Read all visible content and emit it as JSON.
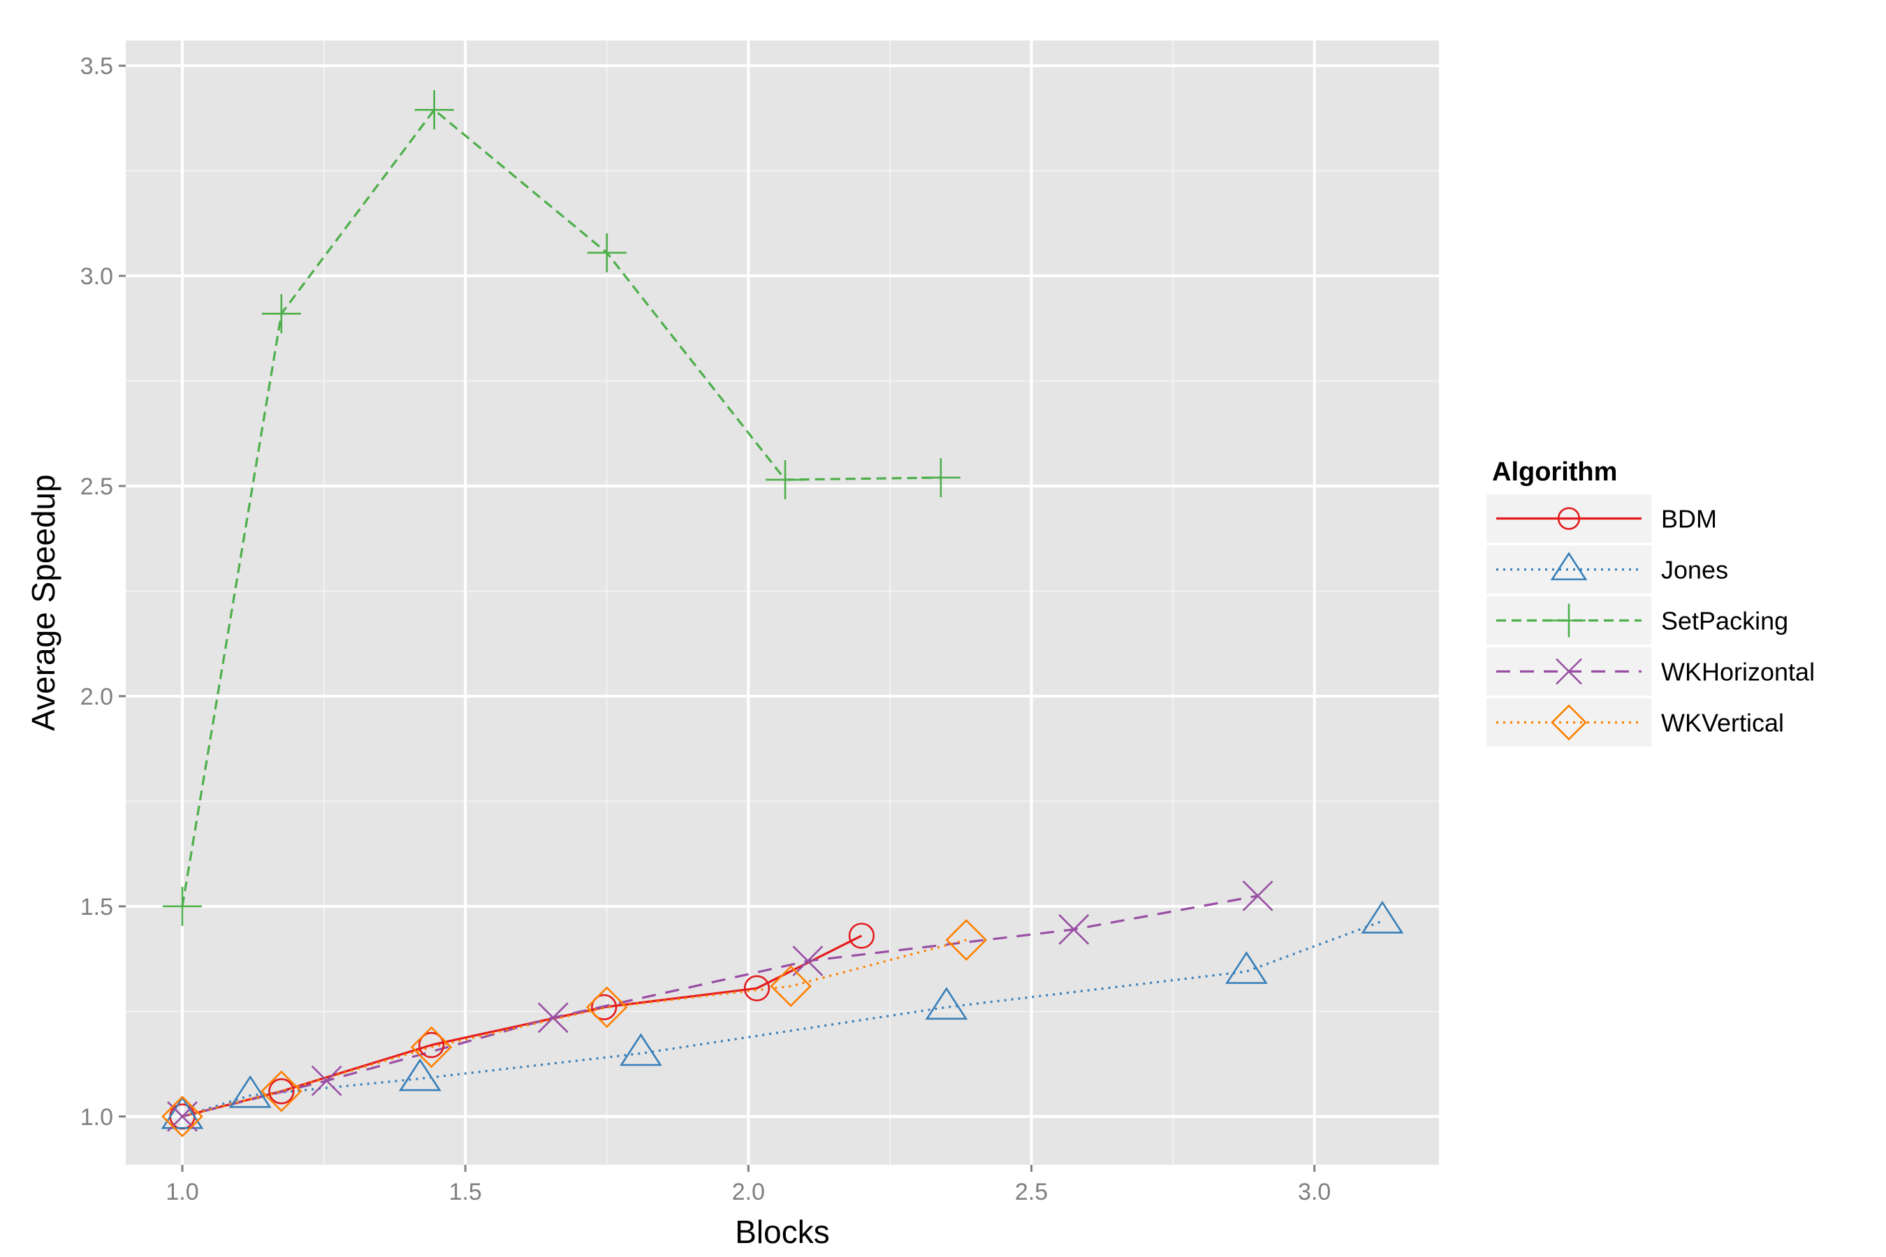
{
  "chart_data": {
    "type": "line",
    "title": "",
    "xlabel": "Blocks",
    "ylabel": "Average Speedup",
    "xlim": [
      0.9,
      3.22
    ],
    "ylim": [
      0.885,
      3.56
    ],
    "xticks": [
      1.0,
      1.5,
      2.0,
      2.5,
      3.0
    ],
    "xtick_labels": [
      "1.0",
      "1.5",
      "2.0",
      "2.5",
      "3.0"
    ],
    "yticks": [
      1.0,
      1.5,
      2.0,
      2.5,
      3.0,
      3.5
    ],
    "ytick_labels": [
      "1.0",
      "1.5",
      "2.0",
      "2.5",
      "3.0",
      "3.5"
    ],
    "grid": true,
    "legend": {
      "title": "Algorithm",
      "position": "right"
    },
    "series": [
      {
        "name": "BDM",
        "color": "#e41a1c",
        "dash": "solid",
        "marker": "circle",
        "x": [
          1.0,
          1.175,
          1.44,
          1.745,
          2.015,
          2.2
        ],
        "y": [
          1.0,
          1.06,
          1.17,
          1.26,
          1.305,
          1.43
        ]
      },
      {
        "name": "Jones",
        "color": "#377eb8",
        "dash": "dotted",
        "marker": "triangle",
        "x": [
          1.0,
          1.12,
          1.42,
          1.81,
          2.35,
          2.88,
          3.12
        ],
        "y": [
          1.0,
          1.05,
          1.09,
          1.15,
          1.26,
          1.345,
          1.465
        ]
      },
      {
        "name": "SetPacking",
        "color": "#4daf4a",
        "dash": "dashed",
        "marker": "plus",
        "x": [
          1.0,
          1.175,
          1.445,
          1.75,
          2.065,
          2.34
        ],
        "y": [
          1.5,
          2.91,
          3.395,
          3.055,
          2.515,
          2.52
        ]
      },
      {
        "name": "WKHorizontal",
        "color": "#984ea3",
        "dash": "longdash",
        "marker": "cross",
        "x": [
          1.0,
          1.255,
          1.655,
          2.105,
          2.575,
          2.9
        ],
        "y": [
          1.0,
          1.085,
          1.235,
          1.37,
          1.445,
          1.525
        ]
      },
      {
        "name": "WKVertical",
        "color": "#ff7f00",
        "dash": "dotted",
        "marker": "diamond",
        "x": [
          1.0,
          1.175,
          1.44,
          1.75,
          2.075,
          2.385
        ],
        "y": [
          1.0,
          1.06,
          1.165,
          1.26,
          1.31,
          1.42
        ]
      }
    ]
  }
}
